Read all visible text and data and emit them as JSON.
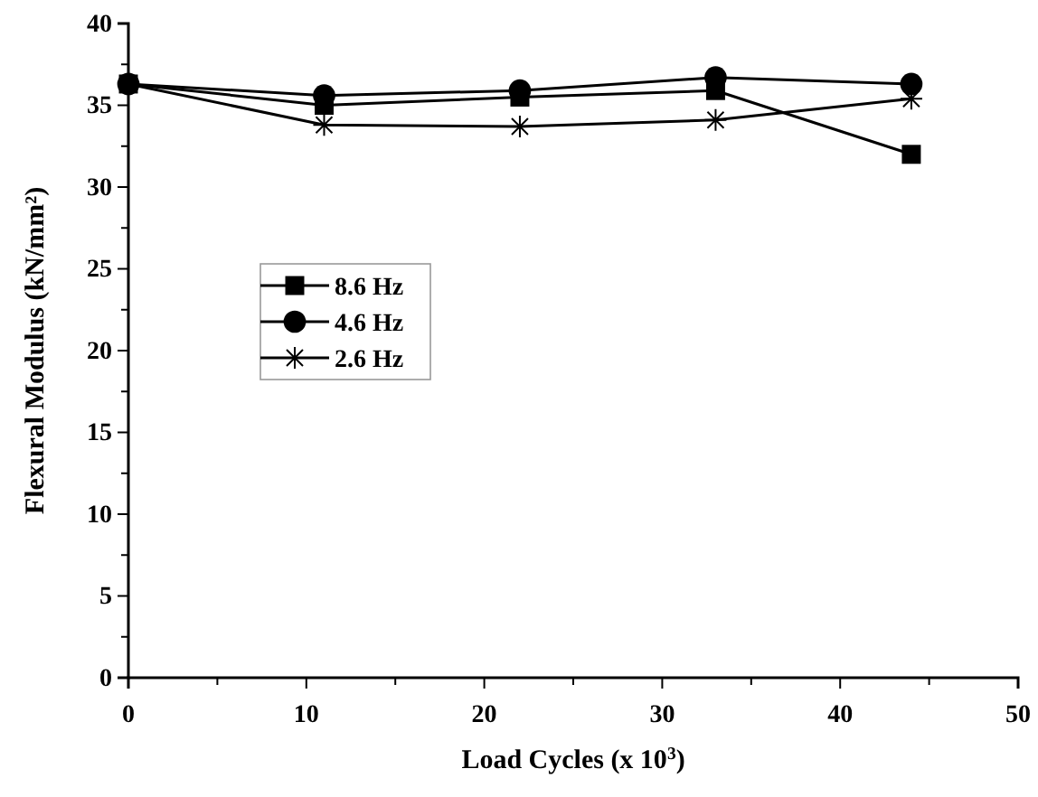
{
  "chart_data": {
    "type": "line",
    "xlabel": "Load Cycles (x 10$^{3}$)",
    "ylabel": "Flexural Modulus (kN/mm²)",
    "x": [
      0,
      11,
      22,
      33,
      44
    ],
    "series": [
      {
        "name": "8.6 Hz",
        "color": "#000000",
        "marker": "square",
        "values": [
          36.3,
          35.0,
          35.5,
          35.9,
          32.0
        ]
      },
      {
        "name": "4.6 Hz",
        "color": "#000000",
        "marker": "circle",
        "values": [
          36.3,
          35.6,
          35.9,
          36.7,
          36.3
        ]
      },
      {
        "name": "2.6 Hz",
        "color": "#000000",
        "marker": "cross",
        "values": [
          36.3,
          33.8,
          33.7,
          34.1,
          35.4
        ]
      }
    ],
    "xlim": [
      0,
      50
    ],
    "xticks": [
      0,
      {
        "value": 5,
        "label": null
      },
      10,
      {
        "value": 15,
        "label": null
      },
      20,
      {
        "value": 25,
        "label": null
      },
      30,
      {
        "value": 35,
        "label": null
      },
      40,
      {
        "value": 45,
        "label": null
      },
      50
    ],
    "ylim": [
      0,
      40
    ],
    "yticks": [
      0,
      {
        "value": 2.5,
        "label": null
      },
      5,
      {
        "value": 7.5,
        "label": null
      },
      10,
      {
        "value": 12.5,
        "label": null
      },
      15,
      {
        "value": 17.5,
        "label": null
      },
      20,
      {
        "value": 22.5,
        "label": null
      },
      25,
      {
        "value": 27.5,
        "label": null
      },
      30,
      {
        "value": 32.5,
        "label": null
      },
      35,
      {
        "value": 37.5,
        "label": null
      },
      40
    ],
    "legend": "left",
    "line_style": "solid",
    "grid": false
  }
}
